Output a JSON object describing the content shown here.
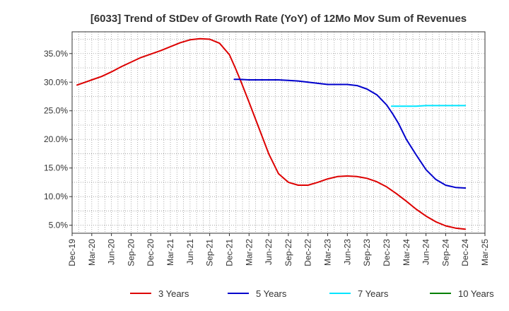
{
  "chart_data": {
    "type": "line",
    "title": "[6033]  Trend of StDev of Growth Rate (YoY) of 12Mo Mov Sum of Revenues",
    "xlabel": "",
    "ylabel": "",
    "x_tick_labels": [
      "Dec-19",
      "Mar-20",
      "Jun-20",
      "Sep-20",
      "Dec-20",
      "Mar-21",
      "Jun-21",
      "Sep-21",
      "Dec-21",
      "Mar-22",
      "Jun-22",
      "Sep-22",
      "Dec-22",
      "Mar-23",
      "Jun-23",
      "Sep-23",
      "Dec-23",
      "Mar-24",
      "Jun-24",
      "Sep-24",
      "Dec-24",
      "Mar-25"
    ],
    "y_ticks": [
      5.0,
      10.0,
      15.0,
      20.0,
      25.0,
      30.0,
      35.0
    ],
    "y_tick_labels": [
      "5.0%",
      "10.0%",
      "15.0%",
      "20.0%",
      "25.0%",
      "30.0%",
      "35.0%"
    ],
    "ylim": [
      3.6,
      38.8
    ],
    "x_range_quarters": [
      0,
      21
    ],
    "grid": true,
    "legend_position": "bottom",
    "series": [
      {
        "name": "3 Years",
        "color": "#dd0000",
        "x": [
          0.25,
          0.5,
          1,
          1.5,
          2,
          2.5,
          3,
          3.5,
          4,
          4.5,
          5,
          5.5,
          6,
          6.5,
          7,
          7.5,
          8,
          8.3,
          8.6,
          9,
          9.5,
          10,
          10.5,
          11,
          11.5,
          12,
          12.5,
          13,
          13.5,
          14,
          14.5,
          15,
          15.5,
          16,
          16.5,
          17,
          17.5,
          18,
          18.5,
          19,
          19.5,
          20
        ],
        "values": [
          29.5,
          29.8,
          30.4,
          31.0,
          31.8,
          32.7,
          33.5,
          34.3,
          34.9,
          35.5,
          36.2,
          36.9,
          37.4,
          37.6,
          37.5,
          36.8,
          34.8,
          32.5,
          30.0,
          26.5,
          22.0,
          17.5,
          14.0,
          12.5,
          12.0,
          12.0,
          12.5,
          13.1,
          13.5,
          13.6,
          13.5,
          13.2,
          12.6,
          11.7,
          10.5,
          9.2,
          7.8,
          6.6,
          5.6,
          4.9,
          4.5,
          4.3
        ]
      },
      {
        "name": "5 Years",
        "color": "#0000cc",
        "x": [
          8.25,
          8.5,
          9,
          9.5,
          10,
          10.5,
          11,
          11.5,
          12,
          12.5,
          13,
          13.5,
          14,
          14.5,
          15,
          15.5,
          16,
          16.3,
          16.6,
          17,
          17.5,
          18,
          18.5,
          19,
          19.5,
          20
        ],
        "values": [
          30.5,
          30.5,
          30.4,
          30.4,
          30.4,
          30.4,
          30.3,
          30.2,
          30.0,
          29.8,
          29.6,
          29.6,
          29.6,
          29.4,
          28.8,
          27.8,
          26.0,
          24.5,
          22.8,
          20.0,
          17.3,
          14.7,
          13.0,
          12.0,
          11.6,
          11.5
        ]
      },
      {
        "name": "7 Years",
        "color": "#00e5ff",
        "x": [
          16.25,
          16.5,
          17,
          17.5,
          18,
          18.5,
          19,
          19.5,
          20
        ],
        "values": [
          25.8,
          25.8,
          25.8,
          25.8,
          25.9,
          25.9,
          25.9,
          25.9,
          25.9
        ]
      },
      {
        "name": "10 Years",
        "color": "#008000",
        "x": [],
        "values": []
      }
    ]
  }
}
